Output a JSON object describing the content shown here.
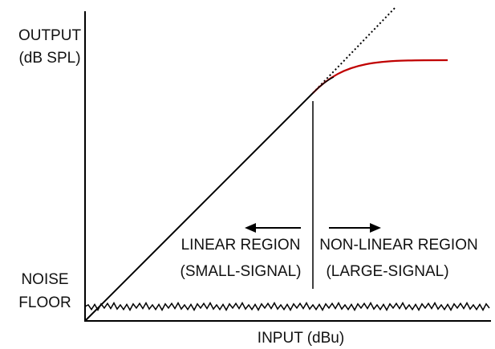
{
  "axes": {
    "y_label": [
      "OUTPUT",
      "(dB SPL)"
    ],
    "x_label": "INPUT (dBu)"
  },
  "noise_floor": [
    "NOISE",
    "FLOOR"
  ],
  "regions": [
    {
      "label": "LINEAR REGION",
      "note": "(SMALL-SIGNAL)"
    },
    {
      "label": "NON-LINEAR REGION",
      "note": "(LARGE-SIGNAL)"
    }
  ]
}
